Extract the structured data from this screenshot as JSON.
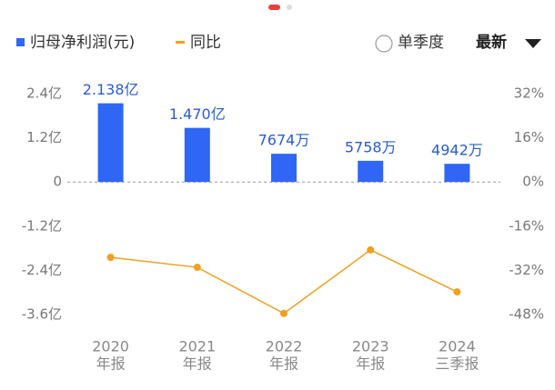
{
  "ui": {
    "radio": "单季度",
    "dropdown": "最新"
  },
  "chart_data": {
    "type": "bar",
    "categories": [
      [
        "2020",
        "年报"
      ],
      [
        "2021",
        "年报"
      ],
      [
        "2022",
        "年报"
      ],
      [
        "2023",
        "年报"
      ],
      [
        "2024",
        "三季报"
      ]
    ],
    "series": [
      {
        "name": "归母净利润(元)",
        "type": "bar",
        "color": "#2f66f6",
        "label_color": "#2a5bd7",
        "values": [
          2.138,
          1.47,
          0.7674,
          0.5758,
          0.4942
        ],
        "value_labels": [
          "2.138亿",
          "1.470亿",
          "7674万",
          "5758万",
          "4942万"
        ]
      },
      {
        "name": "同比",
        "type": "line",
        "color": "#f0a020",
        "axis": "y2",
        "values": [
          -27.3,
          -30.9,
          -47.6,
          -24.6,
          -39.8
        ]
      }
    ],
    "ylim": [
      -3.6,
      2.4
    ],
    "yticks": [
      {
        "value": 2.4,
        "label": "2.4亿"
      },
      {
        "value": 1.2,
        "label": "1.2亿"
      },
      0,
      {
        "value": -1.2,
        "label": "-1.2亿"
      },
      {
        "value": -2.4,
        "label": "-2.4亿"
      },
      {
        "value": -3.6,
        "label": "-3.6亿"
      }
    ],
    "y2lim": [
      -48,
      32
    ],
    "y2ticks": [
      {
        "value": 32,
        "label": "32%"
      },
      {
        "value": 16,
        "label": "16%"
      },
      {
        "value": 0,
        "label": "0%"
      },
      {
        "value": -16,
        "label": "-16%"
      },
      {
        "value": -32,
        "label": "-32%"
      },
      {
        "value": -48,
        "label": "-48%"
      }
    ],
    "grid": false
  }
}
